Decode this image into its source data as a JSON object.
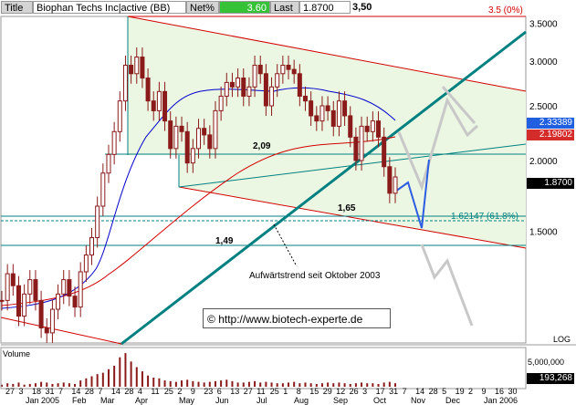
{
  "header": {
    "title_label": "Title",
    "title_value": "Biophan Techs Inc|active (BB)",
    "net_label": "Net%",
    "net_value": "3.60",
    "last_label": "Last",
    "last_value": "1.8700",
    "high_marker": "3,50"
  },
  "annotations": {
    "level_209": "2,09",
    "level_165": "1,65",
    "level_149": "1,49",
    "trend_note": "Aufwärtstrend seit Oktober 2003",
    "copyright": "©",
    "url": "http://www.biotech-experte.de",
    "pct_35": "3.5 (0%)",
    "fib_label": "1.62147 (61.8%)",
    "scale_label": "LOG",
    "volume_label": "Volume"
  },
  "price_boxes": {
    "ma_blue": "2.33389",
    "ma_red": "2.19802",
    "last": "1.8700",
    "volume_last": "193,268",
    "volume_scale": "5,000,000"
  },
  "colors": {
    "candle": "#8b1a1a",
    "ma_fast": "#0000cc",
    "ma_slow": "#d40000",
    "trend": "#008080",
    "channel_fill": "#ebf7e3",
    "forecast_blue": "#2d5de0",
    "forecast_gray": "#c8c8c8",
    "box_blue": "#1f5fe0",
    "box_red": "#d42b2b"
  },
  "chart_data": {
    "type": "candlestick",
    "title": "Biophan Techs Inc|active (BB)",
    "y_scale": "log",
    "ylim": [
      0.95,
      3.6
    ],
    "y_ticks": [
      {
        "value": 3.5,
        "label": "3.5000"
      },
      {
        "value": 3.0,
        "label": "3.0000"
      },
      {
        "value": 2.5,
        "label": "2.5000"
      },
      {
        "value": 2.0,
        "label": "2.0000"
      },
      {
        "value": 1.5,
        "label": "1.5000"
      }
    ],
    "x_day_labels": [
      "27",
      "3",
      "18",
      "31",
      "7",
      "14",
      "28",
      "7",
      "14",
      "28",
      "4",
      "11",
      "25",
      "2",
      "9",
      "23",
      "6",
      "13",
      "27",
      "11",
      "25",
      "1",
      "8",
      "15",
      "29",
      "12",
      "26",
      "3",
      "17",
      "31",
      "7",
      "14",
      "28",
      "5",
      "19",
      "2",
      "9",
      "16",
      "30"
    ],
    "x_month_labels": [
      "Jan 2005",
      "Feb",
      "Mar",
      "Apr",
      "May",
      "Jun",
      "Jul",
      "Aug",
      "Sep",
      "Oct",
      "Nov",
      "Dec",
      "Jan 2006"
    ],
    "horizontal_levels": [
      2.09,
      1.65,
      1.49
    ],
    "fib_level": 1.62147,
    "close_series": [
      1.13,
      1.26,
      1.2,
      1.06,
      1.16,
      1.23,
      1.13,
      1.01,
      0.99,
      1.09,
      1.16,
      1.23,
      1.15,
      1.1,
      1.27,
      1.36,
      1.46,
      1.66,
      1.9,
      2.05,
      2.25,
      2.55,
      2.95,
      2.85,
      3.05,
      2.8,
      2.55,
      2.45,
      2.65,
      2.35,
      2.1,
      2.3,
      2.25,
      1.98,
      2.1,
      2.28,
      2.22,
      2.1,
      2.45,
      2.6,
      2.75,
      2.7,
      2.8,
      2.6,
      2.7,
      2.95,
      2.85,
      2.5,
      2.7,
      2.85,
      2.95,
      2.9,
      2.85,
      2.6,
      2.55,
      2.4,
      2.35,
      2.5,
      2.45,
      2.3,
      2.55,
      2.4,
      2.2,
      2.0,
      2.3,
      2.25,
      2.35,
      2.2,
      1.95,
      1.75,
      1.87
    ],
    "volume_series": [
      0.3,
      0.5,
      0.4,
      0.6,
      0.3,
      0.4,
      0.5,
      0.7,
      0.6,
      0.4,
      0.5,
      0.6,
      0.5,
      0.4,
      0.9,
      1.2,
      1.5,
      1.8,
      2.0,
      2.5,
      3.0,
      4.2,
      4.8,
      3.6,
      2.8,
      2.2,
      1.6,
      1.3,
      1.2,
      0.9,
      0.8,
      0.7,
      0.9,
      1.0,
      0.8,
      0.7,
      0.6,
      0.7,
      0.8,
      0.9,
      1.0,
      0.8,
      0.6,
      0.6,
      0.7,
      0.8,
      0.6,
      0.7,
      0.6,
      0.5,
      0.5,
      0.6,
      0.7,
      0.5,
      0.6,
      0.5,
      0.4,
      0.5,
      0.6,
      0.5,
      0.6,
      0.5,
      0.4,
      0.5,
      0.6,
      0.5,
      0.5,
      0.4,
      0.6,
      0.7,
      0.5
    ],
    "volume_last": 193268,
    "volume_max": 5000000
  }
}
